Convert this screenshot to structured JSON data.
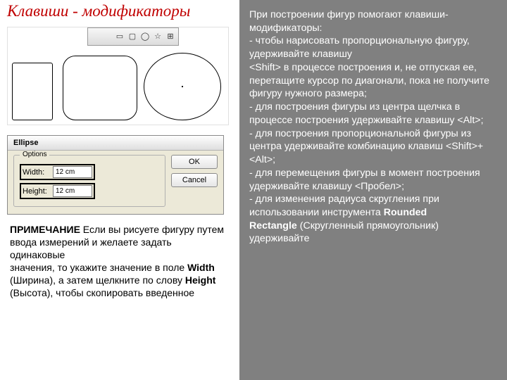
{
  "title": "Клавиши - модификаторы",
  "shapes": {
    "toolbar_icons": [
      "square",
      "rounded",
      "circle",
      "star",
      "grid"
    ]
  },
  "dialog": {
    "title": "Ellipse",
    "legend": "Options",
    "width_label": "Width:",
    "height_label": "Height:",
    "width_value": "12 cm",
    "height_value": "12 cm",
    "ok_label": "OK",
    "cancel_label": "Cancel"
  },
  "note": {
    "lead": "ПРИМЕЧАНИЕ",
    "l1": " Если вы рисуете фигуру путем ввода измерений и желаете задать одинаковые",
    "l2a": "значения, то укажите значение в поле ",
    "bold_width": "Width",
    "l2b": " (Ширина), а затем щелкните по слову ",
    "bold_height": "Height",
    "l2c": " (Высота), чтобы скопировать введенное"
  },
  "right": {
    "p1": "При построении фигур помогают клавиши-модификаторы:",
    "p2": " - чтобы нарисовать пропорциональную фигуру, удерживайте клавишу",
    "p3": "<Shift> в процессе построения и, не отпуская ее, перетащите курсор по диагонали, пока не получите фигуру нужного размера;",
    "p4": "- для построения фигуры из центра щелчка в процессе построения удерживайте клавишу <Alt>;",
    "p5": "- для построения пропорциональной фигуры из центра удерживайте комбинацию клавиш <Shift>+<Alt>;",
    "p6": "- для перемещения фигуры в момент построения удерживайте клавишу <Пробел>;",
    "p7a": "- для изменения радиуса скругления при использовании инструмента ",
    "bold_rounded": "Rounded",
    "bold_rectangle": "Rectangle",
    "p7b": " (Скругленный прямоугольник) удерживайте"
  },
  "colors": {
    "title_color": "#c00000",
    "right_bg": "#808080",
    "dialog_bg": "#ece9d8"
  }
}
